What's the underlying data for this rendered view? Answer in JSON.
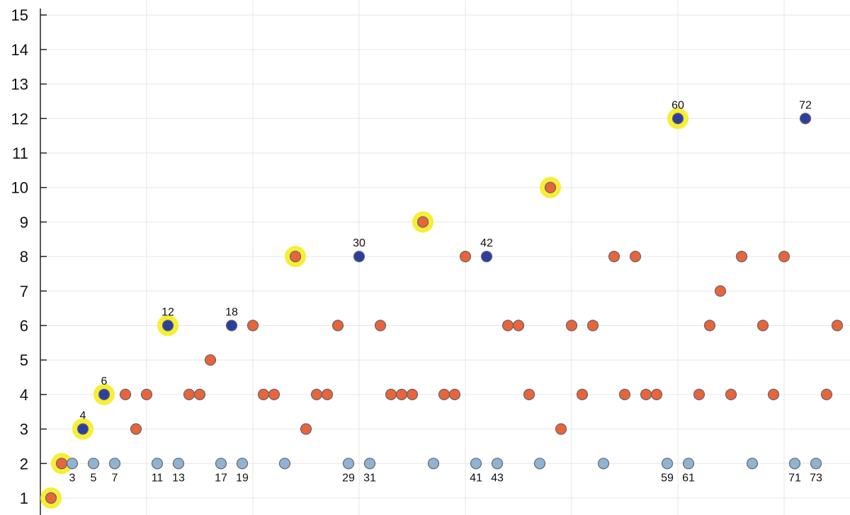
{
  "chart_data": {
    "type": "scatter",
    "title": "",
    "xlabel": "",
    "ylabel": "",
    "xlim": [
      0,
      75
    ],
    "ylim": [
      1,
      15
    ],
    "y_ticks": [
      1,
      2,
      3,
      4,
      5,
      6,
      7,
      8,
      9,
      10,
      11,
      12,
      13,
      14,
      15
    ],
    "grid": true,
    "colors": {
      "other": "#e8643c",
      "prime": "#8fb3d4",
      "labeled_highlight": "#2b3fa0",
      "highlight_ring": "#f6ee37",
      "grid": "#e6e6e6",
      "axis": "#222222",
      "point_stroke": "#666666"
    },
    "y_values": [
      1,
      2,
      2,
      3,
      2,
      4,
      2,
      4,
      3,
      4,
      2,
      6,
      2,
      4,
      4,
      5,
      2,
      6,
      2,
      6,
      4,
      4,
      2,
      8,
      3,
      4,
      4,
      6,
      2,
      8,
      2,
      6,
      4,
      4,
      4,
      9,
      2,
      4,
      4,
      8,
      2,
      8,
      2,
      6,
      6,
      4,
      2,
      10,
      3,
      6,
      4,
      6,
      2,
      8,
      4,
      8,
      4,
      4,
      2,
      12,
      2,
      4,
      6,
      7,
      4,
      8,
      2,
      6,
      4,
      8,
      2,
      12,
      2,
      4,
      6
    ],
    "series": [
      {
        "role": "other",
        "x": [
          2,
          8,
          9,
          10,
          14,
          15,
          16,
          20,
          21,
          22,
          24,
          25,
          26,
          27,
          28,
          32,
          33,
          34,
          35,
          36,
          38,
          39,
          40,
          44,
          45,
          46,
          48,
          49,
          50,
          51,
          52,
          54,
          55,
          56,
          57,
          58,
          62,
          63,
          64,
          65,
          66,
          68,
          69,
          70,
          74,
          75
        ],
        "y": [
          2,
          4,
          3,
          4,
          4,
          4,
          5,
          6,
          4,
          4,
          8,
          3,
          4,
          4,
          6,
          6,
          4,
          4,
          4,
          9,
          4,
          4,
          8,
          6,
          6,
          4,
          10,
          3,
          6,
          4,
          6,
          8,
          4,
          8,
          4,
          4,
          4,
          6,
          7,
          4,
          8,
          6,
          4,
          8,
          4,
          6
        ]
      },
      {
        "role": "prime",
        "x": [
          3,
          5,
          7,
          11,
          13,
          17,
          19,
          23,
          29,
          31,
          37,
          41,
          43,
          47,
          53,
          59,
          61,
          67,
          71,
          73
        ],
        "y": [
          2,
          2,
          2,
          2,
          2,
          2,
          2,
          2,
          2,
          2,
          2,
          2,
          2,
          2,
          2,
          2,
          2,
          2,
          2,
          2
        ]
      },
      {
        "role": "labeled_highlight",
        "x": [
          4,
          6,
          12,
          18,
          30,
          42,
          60,
          72
        ],
        "y": [
          3,
          4,
          6,
          6,
          8,
          8,
          12,
          12
        ]
      }
    ],
    "highlight_rings": [
      1,
      2,
      4,
      6,
      12,
      24,
      36,
      48,
      60
    ],
    "point_labels_above": [
      "4",
      "6",
      "12",
      "18",
      "30",
      "42",
      "60",
      "72"
    ],
    "point_labels_below": [
      "3",
      "5",
      "7",
      "11",
      "13",
      "17",
      "19",
      "29",
      "31",
      "41",
      "43",
      "59",
      "61",
      "71",
      "73"
    ]
  }
}
